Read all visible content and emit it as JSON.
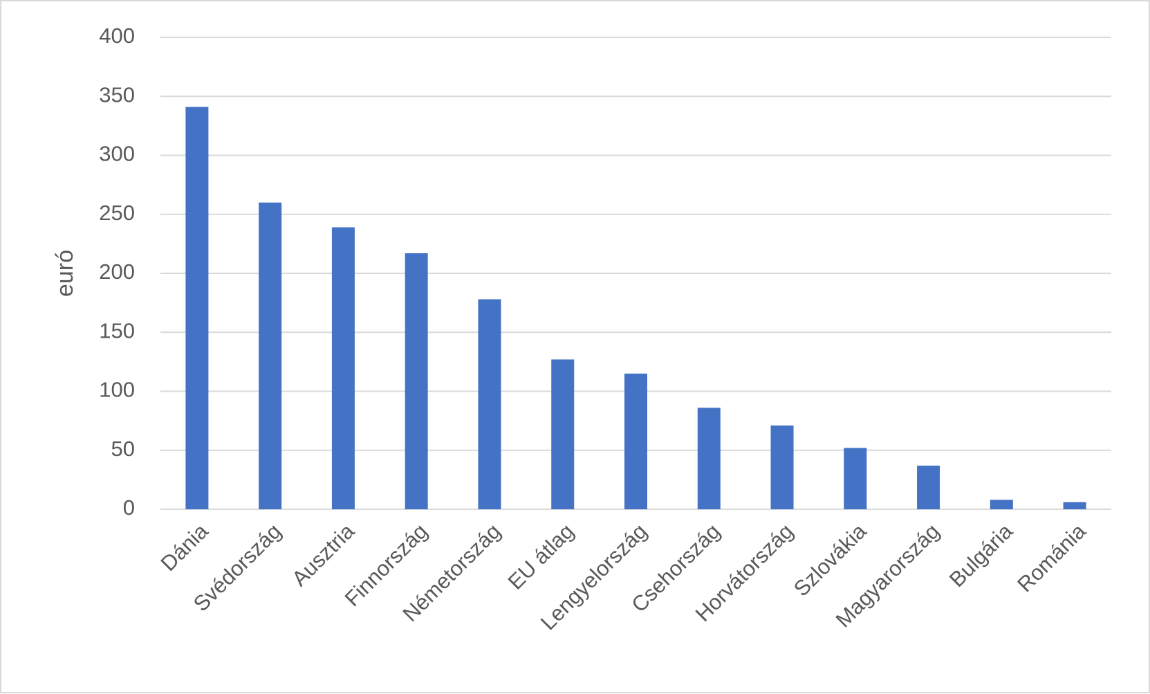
{
  "chart_data": {
    "type": "bar",
    "y_label": "euró",
    "categories": [
      "Dánia",
      "Svédország",
      "Ausztria",
      "Finnország",
      "Németország",
      "EU átlag",
      "Lengyelország",
      "Csehország",
      "Horvátország",
      "Szlovákia",
      "Magyarország",
      "Bulgária",
      "Románia"
    ],
    "values": [
      341,
      260,
      239,
      217,
      178,
      127,
      115,
      86,
      71,
      52,
      37,
      8,
      6
    ],
    "color": "#4472c4",
    "ylim": [
      0,
      400
    ],
    "yticks": [
      0,
      50,
      100,
      150,
      200,
      250,
      300,
      350,
      400
    ],
    "grid": true
  }
}
